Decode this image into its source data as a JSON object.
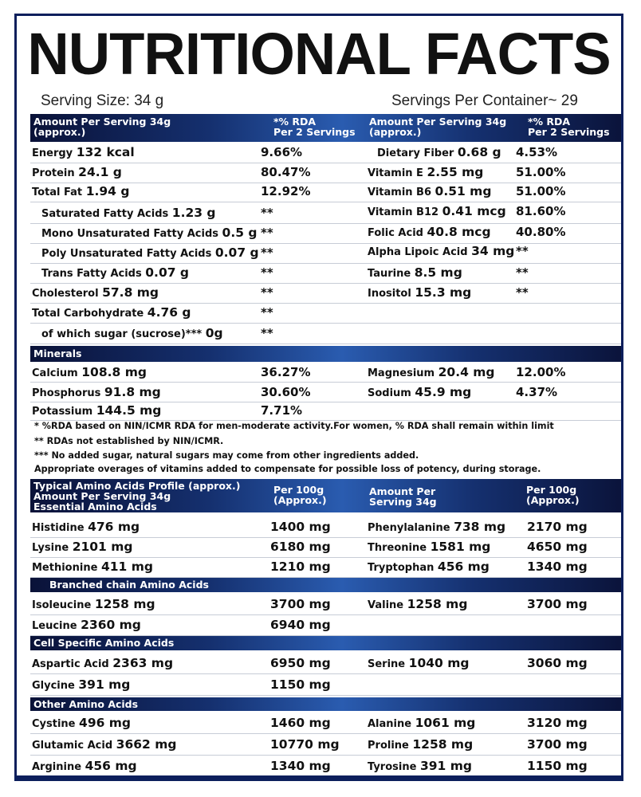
{
  "title": "NUTRITIONAL FACTS",
  "serving_size": "Serving Size: 34 g",
  "servings_per_container": "Servings Per Container~ 29",
  "header": {
    "amount_line1": "Amount Per Serving 34g",
    "amount_line2": "(approx.)",
    "rda_line1": "*% RDA",
    "rda_line2": "Per 2 Servings"
  },
  "left_nutrients": [
    {
      "name": "Energy",
      "value": "132 kcal",
      "rda": "9.66%"
    },
    {
      "name": "Protein",
      "value": "24.1 g",
      "rda": "80.47%"
    },
    {
      "name": "Total Fat",
      "value": "1.94 g",
      "rda": "12.92%"
    },
    {
      "name": "Saturated Fatty Acids",
      "value": "1.23 g",
      "rda": "**"
    },
    {
      "name": "Mono Unsaturated Fatty Acids",
      "value": "0.5 g",
      "rda": "**"
    },
    {
      "name": "Poly Unsaturated Fatty Acids",
      "value": "0.07 g",
      "rda": "**"
    },
    {
      "name": "Trans Fatty Acids",
      "value": "0.07 g",
      "rda": "**"
    },
    {
      "name": "Cholesterol",
      "value": "57.8 mg",
      "rda": "**"
    },
    {
      "name": "Total Carbohydrate",
      "value": "4.76 g",
      "rda": "**"
    },
    {
      "name": "of which sugar (sucrose)***",
      "value": "0g",
      "rda": "**"
    }
  ],
  "right_nutrients": [
    {
      "name": "Dietary Fiber",
      "value": "0.68 g",
      "rda": "4.53%"
    },
    {
      "name": "Vitamin E",
      "value": "2.55 mg",
      "rda": "51.00%"
    },
    {
      "name": "Vitamin B6",
      "value": "0.51 mg",
      "rda": "51.00%"
    },
    {
      "name": "Vitamin B12",
      "value": "0.41 mcg",
      "rda": "81.60%"
    },
    {
      "name": "Folic Acid",
      "value": "40.8 mcg",
      "rda": "40.80%"
    },
    {
      "name": "Alpha Lipoic Acid",
      "value": "34 mg",
      "rda": "**"
    },
    {
      "name": "Taurine",
      "value": "8.5 mg",
      "rda": "**"
    },
    {
      "name": "Inositol",
      "value": "15.3 mg",
      "rda": "**"
    }
  ],
  "minerals": {
    "heading": "Minerals",
    "left": [
      {
        "name": "Calcium",
        "value": "108.8 mg",
        "rda": "36.27%"
      },
      {
        "name": "Phosphorus",
        "value": "91.8 mg",
        "rda": "30.60%"
      },
      {
        "name": "Potassium",
        "value": "144.5 mg",
        "rda": "7.71%"
      }
    ],
    "right": [
      {
        "name": "Magnesium",
        "value": "20.4 mg",
        "rda": "12.00%"
      },
      {
        "name": "Sodium",
        "value": "45.9 mg",
        "rda": "4.37%"
      }
    ]
  },
  "notes": [
    "* %RDA based on NIN/ICMR RDA for men-moderate activity.For women, % RDA shall remain within limit",
    "** RDAs not established by NIN/ICMR.",
    "***  No added sugar, natural sugars may come from other ingredients added.",
    "Appropriate overages of vitamins added to compensate for possible loss of potency, during storage."
  ],
  "amino_header": {
    "left_line1": "Typical Amino Acids Profile (approx.)",
    "left_line2": "Amount Per Serving 34g",
    "left_line3": "Essential Amino Acids",
    "per100_line1": "Per 100g",
    "per100_line2": "(Approx.)",
    "right_line1": "Amount Per",
    "right_line2": "Serving 34g",
    "per100b_line1": "Per 100g",
    "per100b_line2": "(Approx.)"
  },
  "essential": [
    {
      "name": "Histidine",
      "value": "476 mg",
      "per100": "1400 mg",
      "name2": "Phenylalanine",
      "value2": "738 mg",
      "per100_2": "2170 mg"
    },
    {
      "name": "Lysine",
      "value": "2101 mg",
      "per100": "6180 mg",
      "name2": "Threonine",
      "value2": "1581 mg",
      "per100_2": "4650 mg"
    },
    {
      "name": "Methionine",
      "value": "411 mg",
      "per100": "1210 mg",
      "name2": "Tryptophan",
      "value2": "456 mg",
      "per100_2": "1340 mg"
    }
  ],
  "bcaa_heading": "Branched chain Amino Acids",
  "bcaa": [
    {
      "name": "Isoleucine",
      "value": "1258 mg",
      "per100": "3700 mg",
      "name2": "Valine",
      "value2": "1258 mg",
      "per100_2": "3700 mg"
    },
    {
      "name": "Leucine",
      "value": "2360 mg",
      "per100": "6940 mg",
      "name2": "",
      "value2": "",
      "per100_2": ""
    }
  ],
  "cell_heading": "Cell Specific Amino Acids",
  "cell": [
    {
      "name": "Aspartic Acid",
      "value": "2363 mg",
      "per100": "6950 mg",
      "name2": "Serine",
      "value2": "1040 mg",
      "per100_2": "3060 mg"
    },
    {
      "name": "Glycine",
      "value": "391 mg",
      "per100": "1150 mg",
      "name2": "",
      "value2": "",
      "per100_2": ""
    }
  ],
  "other_heading": "Other Amino Acids",
  "other": [
    {
      "name": "Cystine",
      "value": "496 mg",
      "per100": "1460 mg",
      "name2": "Alanine",
      "value2": "1061 mg",
      "per100_2": "3120 mg"
    },
    {
      "name": "Glutamic Acid",
      "value": "3662 mg",
      "per100": "10770 mg",
      "name2": "Proline",
      "value2": "1258 mg",
      "per100_2": "3700 mg"
    },
    {
      "name": "Arginine",
      "value": "456 mg",
      "per100": "1340 mg",
      "name2": "Tyrosine",
      "value2": "391 mg",
      "per100_2": "1150 mg"
    }
  ]
}
